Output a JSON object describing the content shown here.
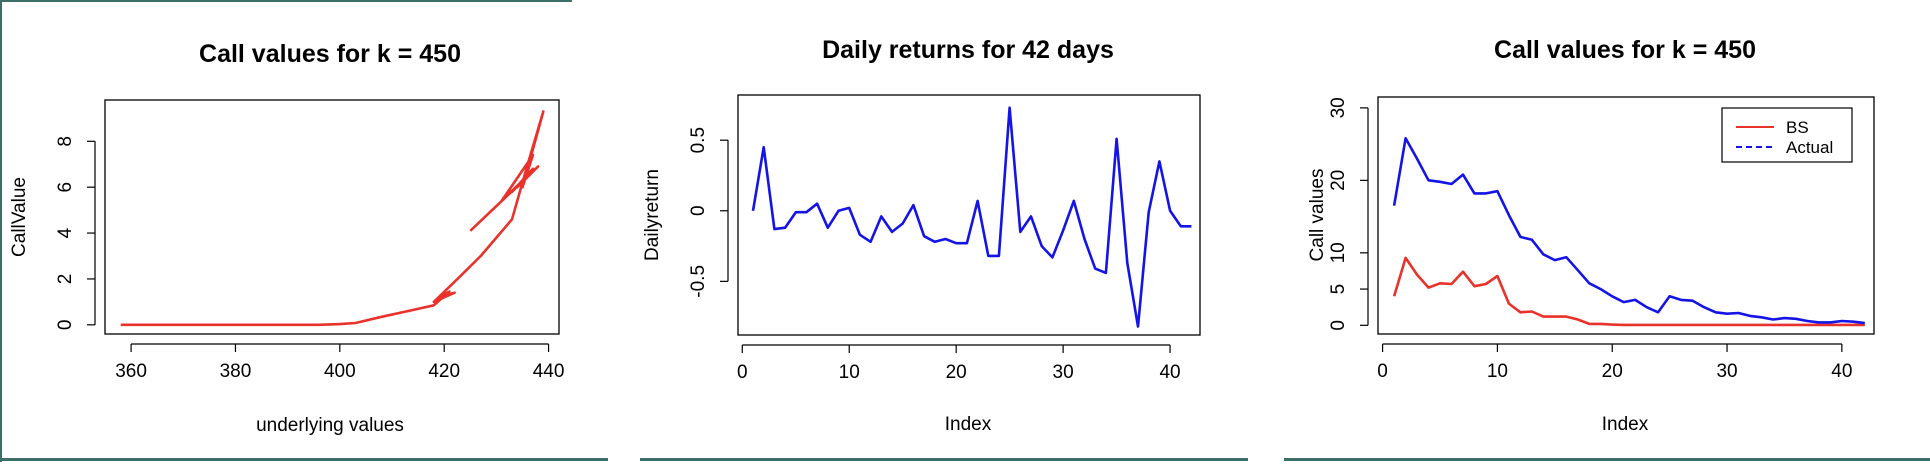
{
  "chart_data": [
    {
      "type": "line",
      "title": "Call values for k = 450",
      "xlabel": "underlying values",
      "ylabel": "CallValue",
      "xlim": [
        355,
        442
      ],
      "ylim": [
        -0.4,
        9.8
      ],
      "xticks": [
        360,
        380,
        400,
        420,
        440
      ],
      "yticks": [
        0,
        2,
        4,
        6,
        8
      ],
      "grid": false,
      "series": [
        {
          "color": "#e8322b",
          "x": [
            358,
            372,
            386,
            396,
            400,
            403,
            408,
            413,
            418,
            421,
            419,
            422,
            418,
            423,
            427,
            430,
            433,
            436,
            439,
            435,
            437,
            431,
            436,
            433,
            437,
            434,
            438,
            425
          ],
          "y": [
            0,
            0,
            0,
            0,
            0.03,
            0.08,
            0.35,
            0.6,
            0.85,
            1.45,
            1.2,
            1.4,
            1.0,
            2.1,
            3.0,
            3.8,
            4.6,
            7.0,
            9.3,
            6.0,
            7.4,
            5.4,
            6.5,
            5.8,
            6.8,
            6.0,
            6.9,
            4.1
          ]
        }
      ]
    },
    {
      "type": "line",
      "title": "Daily returns for 42 days",
      "xlabel": "Index",
      "ylabel": "Dailyreturn",
      "xlim": [
        -0.4,
        42.8
      ],
      "ylim": [
        -0.88,
        0.82
      ],
      "xticks": [
        0,
        10,
        20,
        30,
        40
      ],
      "yticks": [
        -0.5,
        0.0,
        0.5
      ],
      "grid": false,
      "series": [
        {
          "color": "#1414e6",
          "x": [
            1,
            2,
            3,
            4,
            5,
            6,
            7,
            8,
            9,
            10,
            11,
            12,
            13,
            14,
            15,
            16,
            17,
            18,
            19,
            20,
            21,
            22,
            23,
            24,
            25,
            26,
            27,
            28,
            29,
            30,
            31,
            32,
            33,
            34,
            35,
            36,
            37,
            38,
            39,
            40,
            41,
            42
          ],
          "y": [
            0.0,
            0.45,
            -0.13,
            -0.12,
            -0.01,
            -0.01,
            0.05,
            -0.12,
            0.0,
            0.02,
            -0.17,
            -0.22,
            -0.04,
            -0.15,
            -0.09,
            0.04,
            -0.18,
            -0.22,
            -0.2,
            -0.23,
            -0.23,
            0.07,
            -0.32,
            -0.32,
            0.73,
            -0.15,
            -0.04,
            -0.25,
            -0.33,
            -0.14,
            0.07,
            -0.2,
            -0.41,
            -0.44,
            0.51,
            -0.37,
            -0.82,
            -0.01,
            0.35,
            0.0,
            -0.11,
            -0.11
          ]
        }
      ]
    },
    {
      "type": "line",
      "title": "Call values for k = 450",
      "xlabel": "Index",
      "ylabel": "Call values",
      "xlim": [
        -0.4,
        42.8
      ],
      "ylim": [
        -1.2,
        31.5
      ],
      "xticks": [
        0,
        10,
        20,
        30,
        40
      ],
      "yticks": [
        0,
        5,
        10,
        20,
        30
      ],
      "grid": false,
      "legend_position": "top-right",
      "series": [
        {
          "name": "BS",
          "color": "#e8322b",
          "x": [
            1,
            2,
            3,
            4,
            5,
            6,
            7,
            8,
            9,
            10,
            11,
            12,
            13,
            14,
            15,
            16,
            17,
            18,
            19,
            20,
            21,
            22,
            23,
            24,
            25,
            26,
            27,
            28,
            29,
            30,
            31,
            32,
            33,
            34,
            35,
            36,
            37,
            38,
            39,
            40,
            41,
            42
          ],
          "y": [
            4.0,
            9.3,
            7.0,
            5.2,
            5.8,
            5.7,
            7.4,
            5.4,
            5.7,
            6.8,
            3.0,
            1.8,
            1.9,
            1.2,
            1.2,
            1.2,
            0.8,
            0.2,
            0.2,
            0.1,
            0.05,
            0.05,
            0.05,
            0.05,
            0.05,
            0.05,
            0.05,
            0.05,
            0.05,
            0.05,
            0.05,
            0.05,
            0.05,
            0.05,
            0.05,
            0.05,
            0.05,
            0.05,
            0.05,
            0.05,
            0.05,
            0.05
          ]
        },
        {
          "name": "Actual",
          "color": "#1414e6",
          "x": [
            1,
            2,
            3,
            4,
            5,
            6,
            7,
            8,
            9,
            10,
            11,
            12,
            13,
            14,
            15,
            16,
            17,
            18,
            19,
            20,
            21,
            22,
            23,
            24,
            25,
            26,
            27,
            28,
            29,
            30,
            31,
            32,
            33,
            34,
            35,
            36,
            37,
            38,
            39,
            40,
            41,
            42
          ],
          "y": [
            16.5,
            25.8,
            23.0,
            20.0,
            19.8,
            19.5,
            20.8,
            18.2,
            18.2,
            18.5,
            15.2,
            12.2,
            11.8,
            9.8,
            9.0,
            9.4,
            7.6,
            5.8,
            5.0,
            4.0,
            3.2,
            3.5,
            2.5,
            1.8,
            4.0,
            3.5,
            3.4,
            2.5,
            1.8,
            1.6,
            1.7,
            1.3,
            1.1,
            0.8,
            1.0,
            0.9,
            0.6,
            0.4,
            0.4,
            0.6,
            0.5,
            0.3
          ]
        }
      ]
    }
  ]
}
